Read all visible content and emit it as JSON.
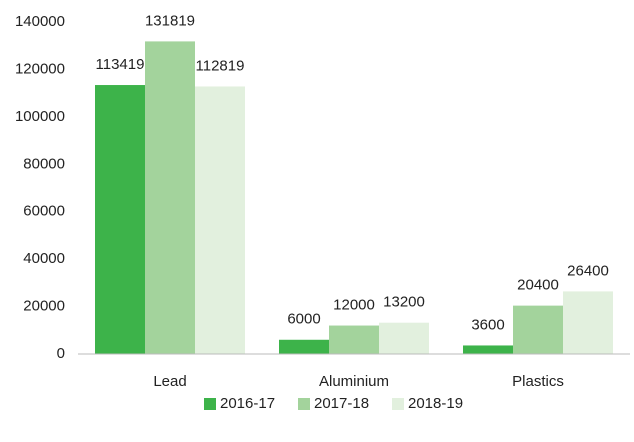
{
  "chart_data": {
    "type": "bar",
    "categories": [
      "Lead",
      "Aluminium",
      "Plastics"
    ],
    "series": [
      {
        "name": "2016-17",
        "color": "#3db34a",
        "values": [
          113419,
          6000,
          3600
        ]
      },
      {
        "name": "2017-18",
        "color": "#a3d39c",
        "values": [
          131819,
          12000,
          20400
        ]
      },
      {
        "name": "2018-19",
        "color": "#e2f0de",
        "values": [
          112819,
          13200,
          26400
        ]
      }
    ],
    "ylim": [
      0,
      140000
    ],
    "yticks": [
      0,
      20000,
      40000,
      60000,
      80000,
      100000,
      120000,
      140000
    ],
    "grid": false,
    "legend": "bottom"
  }
}
